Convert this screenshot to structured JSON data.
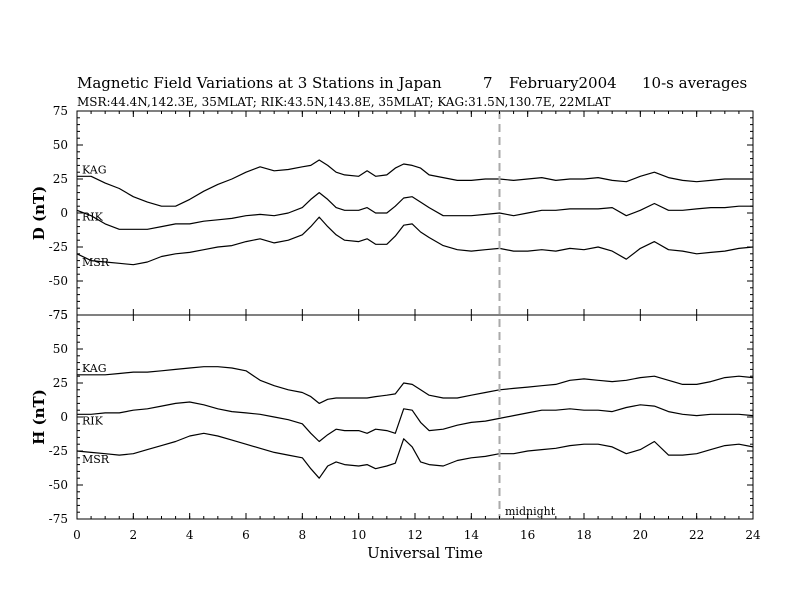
{
  "chart_data": {
    "type": "line",
    "title": {
      "main": "Magnetic Field Variations at 3 Stations in Japan",
      "day": "7",
      "date": "February2004",
      "averaging": "10-s averages"
    },
    "subtitle": "MSR:44.4N,142.3E, 35MLAT;  RIK:43.5N,143.8E, 35MLAT;  KAG:31.5N,130.7E, 22MLAT",
    "xlabel": "Universal Time",
    "xlim": [
      0,
      24
    ],
    "xticks": [
      "0",
      "2",
      "4",
      "6",
      "8",
      "10",
      "12",
      "14",
      "16",
      "18",
      "20",
      "22",
      "24"
    ],
    "grid": false,
    "vline": {
      "x": 15,
      "label": "midnight",
      "style": "dashed",
      "color": "#aaaaaa"
    },
    "panels": [
      {
        "ylabel": "D (nT)",
        "ylim": [
          -75,
          75
        ],
        "yticks": [
          "75",
          "50",
          "25",
          "0",
          "-25",
          "-50",
          "-75"
        ],
        "series": [
          {
            "name": "KAG",
            "x": [
              0,
              0.5,
              1,
              1.5,
              2,
              2.5,
              3,
              3.5,
              4,
              4.5,
              5,
              5.5,
              6,
              6.5,
              7,
              7.5,
              8,
              8.3,
              8.6,
              8.9,
              9.2,
              9.5,
              10,
              10.3,
              10.6,
              11,
              11.3,
              11.6,
              11.9,
              12.2,
              12.5,
              13,
              13.5,
              14,
              14.5,
              15,
              15.5,
              16,
              16.5,
              17,
              17.5,
              18,
              18.5,
              19,
              19.5,
              20,
              20.5,
              21,
              21.5,
              22,
              22.5,
              23,
              23.5,
              24
            ],
            "y": [
              27,
              27,
              22,
              18,
              12,
              8,
              5,
              5,
              10,
              16,
              21,
              25,
              30,
              34,
              31,
              32,
              34,
              35,
              39,
              35,
              30,
              28,
              27,
              31,
              27,
              28,
              33,
              36,
              35,
              33,
              28,
              26,
              24,
              24,
              25,
              25,
              24,
              25,
              26,
              24,
              25,
              25,
              26,
              24,
              23,
              27,
              30,
              26,
              24,
              23,
              24,
              25,
              25,
              25
            ]
          },
          {
            "name": "RIK",
            "x": [
              0,
              0.5,
              1,
              1.5,
              2,
              2.5,
              3,
              3.5,
              4,
              4.5,
              5,
              5.5,
              6,
              6.5,
              7,
              7.5,
              8,
              8.3,
              8.6,
              8.9,
              9.2,
              9.5,
              10,
              10.3,
              10.6,
              11,
              11.3,
              11.6,
              11.9,
              12.2,
              12.5,
              13,
              13.5,
              14,
              14.5,
              15,
              15.5,
              16,
              16.5,
              17,
              17.5,
              18,
              18.5,
              19,
              19.5,
              20,
              20.5,
              21,
              21.5,
              22,
              22.5,
              23,
              23.5,
              24
            ],
            "y": [
              2,
              -2,
              -8,
              -12,
              -12,
              -12,
              -10,
              -8,
              -8,
              -6,
              -5,
              -4,
              -2,
              -1,
              -2,
              0,
              4,
              10,
              15,
              10,
              4,
              2,
              2,
              4,
              0,
              0,
              5,
              11,
              12,
              8,
              4,
              -2,
              -2,
              -2,
              -1,
              0,
              -2,
              0,
              2,
              2,
              3,
              3,
              3,
              4,
              -2,
              2,
              7,
              2,
              2,
              3,
              4,
              4,
              5,
              5
            ]
          },
          {
            "name": "MSR",
            "x": [
              0,
              0.5,
              1,
              1.5,
              2,
              2.5,
              3,
              3.5,
              4,
              4.5,
              5,
              5.5,
              6,
              6.5,
              7,
              7.5,
              8,
              8.3,
              8.6,
              8.9,
              9.2,
              9.5,
              10,
              10.3,
              10.6,
              11,
              11.3,
              11.6,
              11.9,
              12.2,
              12.5,
              13,
              13.5,
              14,
              14.5,
              15,
              15.5,
              16,
              16.5,
              17,
              17.5,
              18,
              18.5,
              19,
              19.5,
              20,
              20.5,
              21,
              21.5,
              22,
              22.5,
              23,
              23.5,
              24
            ],
            "y": [
              -30,
              -35,
              -36,
              -37,
              -38,
              -36,
              -32,
              -30,
              -29,
              -27,
              -25,
              -24,
              -21,
              -19,
              -22,
              -20,
              -16,
              -10,
              -3,
              -10,
              -16,
              -20,
              -21,
              -19,
              -23,
              -23,
              -17,
              -9,
              -8,
              -14,
              -18,
              -24,
              -27,
              -28,
              -27,
              -26,
              -28,
              -28,
              -27,
              -28,
              -26,
              -27,
              -25,
              -28,
              -34,
              -26,
              -21,
              -27,
              -28,
              -30,
              -29,
              -28,
              -26,
              -25
            ]
          }
        ]
      },
      {
        "ylabel": "H (nT)",
        "ylim": [
          -75,
          75
        ],
        "yticks": [
          "75",
          "50",
          "25",
          "0",
          "-25",
          "-50",
          "-75"
        ],
        "series": [
          {
            "name": "KAG",
            "x": [
              0,
              0.5,
              1,
              1.5,
              2,
              2.5,
              3,
              3.5,
              4,
              4.5,
              5,
              5.5,
              6,
              6.5,
              7,
              7.5,
              8,
              8.3,
              8.6,
              8.9,
              9.2,
              9.5,
              10,
              10.3,
              10.6,
              11,
              11.3,
              11.6,
              11.9,
              12.2,
              12.5,
              13,
              13.5,
              14,
              14.5,
              15,
              15.5,
              16,
              16.5,
              17,
              17.5,
              18,
              18.5,
              19,
              19.5,
              20,
              20.5,
              21,
              21.5,
              22,
              22.5,
              23,
              23.5,
              24
            ],
            "y": [
              31,
              31,
              31,
              32,
              33,
              33,
              34,
              35,
              36,
              37,
              37,
              36,
              34,
              27,
              23,
              20,
              18,
              15,
              10,
              13,
              14,
              14,
              14,
              14,
              15,
              16,
              17,
              25,
              24,
              20,
              16,
              14,
              14,
              16,
              18,
              20,
              21,
              22,
              23,
              24,
              27,
              28,
              27,
              26,
              27,
              29,
              30,
              27,
              24,
              24,
              26,
              29,
              30,
              29
            ]
          },
          {
            "name": "RIK",
            "x": [
              0,
              0.5,
              1,
              1.5,
              2,
              2.5,
              3,
              3.5,
              4,
              4.5,
              5,
              5.5,
              6,
              6.5,
              7,
              7.5,
              8,
              8.3,
              8.6,
              8.9,
              9.2,
              9.5,
              10,
              10.3,
              10.6,
              11,
              11.3,
              11.6,
              11.9,
              12.2,
              12.5,
              13,
              13.5,
              14,
              14.5,
              15,
              15.5,
              16,
              16.5,
              17,
              17.5,
              18,
              18.5,
              19,
              19.5,
              20,
              20.5,
              21,
              21.5,
              22,
              22.5,
              23,
              23.5,
              24
            ],
            "y": [
              2,
              2,
              3,
              3,
              5,
              6,
              8,
              10,
              11,
              9,
              6,
              4,
              3,
              2,
              0,
              -2,
              -5,
              -12,
              -18,
              -13,
              -9,
              -10,
              -10,
              -12,
              -9,
              -10,
              -12,
              6,
              5,
              -4,
              -10,
              -9,
              -6,
              -4,
              -3,
              -1,
              1,
              3,
              5,
              5,
              6,
              5,
              5,
              4,
              7,
              9,
              8,
              4,
              2,
              1,
              2,
              2,
              2,
              1
            ]
          },
          {
            "name": "MSR",
            "x": [
              0,
              0.5,
              1,
              1.5,
              2,
              2.5,
              3,
              3.5,
              4,
              4.5,
              5,
              5.5,
              6,
              6.5,
              7,
              7.5,
              8,
              8.3,
              8.6,
              8.9,
              9.2,
              9.5,
              10,
              10.3,
              10.6,
              11,
              11.3,
              11.6,
              11.9,
              12.2,
              12.5,
              13,
              13.5,
              14,
              14.5,
              15,
              15.5,
              16,
              16.5,
              17,
              17.5,
              18,
              18.5,
              19,
              19.5,
              20,
              20.5,
              21,
              21.5,
              22,
              22.5,
              23,
              23.5,
              24
            ],
            "y": [
              -25,
              -26,
              -27,
              -28,
              -27,
              -24,
              -21,
              -18,
              -14,
              -12,
              -14,
              -17,
              -20,
              -23,
              -26,
              -28,
              -30,
              -38,
              -45,
              -36,
              -33,
              -35,
              -36,
              -35,
              -38,
              -36,
              -34,
              -16,
              -22,
              -33,
              -35,
              -36,
              -32,
              -30,
              -29,
              -27,
              -27,
              -25,
              -24,
              -23,
              -21,
              -20,
              -20,
              -22,
              -27,
              -24,
              -18,
              -28,
              -28,
              -27,
              -24,
              -21,
              -20,
              -22
            ]
          }
        ]
      }
    ]
  }
}
